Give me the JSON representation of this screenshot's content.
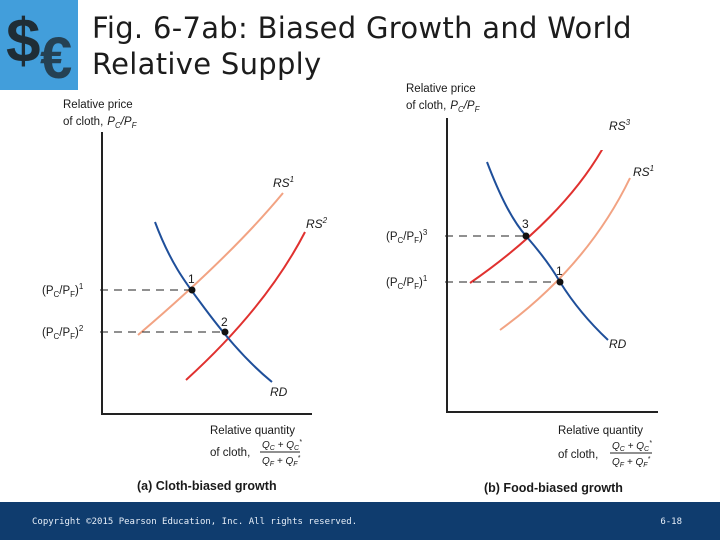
{
  "slide": {
    "title": "Fig. 6-7ab: Biased Growth and World Relative Supply",
    "copyright": "Copyright ©2015 Pearson Education, Inc. All rights reserved.",
    "page": "6-18"
  },
  "colors": {
    "rd": "#1f4f9a",
    "rs_light": "#f2a383",
    "rs_dark": "#e0312f",
    "footer": "#0f3c6e"
  },
  "panel_a": {
    "y_axis_label_1": "Relative price",
    "y_axis_label_2": "of cloth,",
    "y_axis_label_3": "P",
    "y_axis_sub_c": "C",
    "y_axis_slash": "/P",
    "y_axis_sub_f": "F",
    "x_axis_label_1": "Relative quantity",
    "x_axis_label_2": "of cloth,",
    "x_frac_num": "Q",
    "x_frac_num_c": "C",
    "x_frac_num_plus": " + Q",
    "x_frac_num_c2": "C",
    "x_frac_num_star": "*",
    "x_frac_den": "Q",
    "x_frac_den_f": "F",
    "x_frac_den_plus": " + Q",
    "x_frac_den_f2": "F",
    "x_frac_den_star": "*",
    "curve_rs1": "RS",
    "curve_rs1_sup": "1",
    "curve_rs2": "RS",
    "curve_rs2_sup": "2",
    "curve_rd": "RD",
    "price1_open": "(P",
    "price1_c": "C",
    "price1_mid": "/P",
    "price1_f": "F",
    "price1_close": ")",
    "price1_sup": "1",
    "price2_open": "(P",
    "price2_c": "C",
    "price2_mid": "/P",
    "price2_f": "F",
    "price2_close": ")",
    "price2_sup": "2",
    "point1": "1",
    "point2": "2",
    "caption": "(a) Cloth-biased growth"
  },
  "panel_b": {
    "y_axis_label_1": "Relative price",
    "y_axis_label_2": "of cloth,",
    "y_axis_label_3": "P",
    "y_axis_sub_c": "C",
    "y_axis_slash": "/P",
    "y_axis_sub_f": "F",
    "x_axis_label_1": "Relative quantity",
    "x_axis_label_2": "of cloth,",
    "x_frac_num": "Q",
    "x_frac_num_c": "C",
    "x_frac_num_plus": " + Q",
    "x_frac_num_c2": "C",
    "x_frac_num_star": "*",
    "x_frac_den": "Q",
    "x_frac_den_f": "F",
    "x_frac_den_plus": " + Q",
    "x_frac_den_f2": "F",
    "x_frac_den_star": "*",
    "curve_rs3": "RS",
    "curve_rs3_sup": "3",
    "curve_rs1": "RS",
    "curve_rs1_sup": "1",
    "curve_rd": "RD",
    "price3_open": "(P",
    "price3_c": "C",
    "price3_mid": "/P",
    "price3_f": "F",
    "price3_close": ")",
    "price3_sup": "3",
    "price1_open": "(P",
    "price1_c": "C",
    "price1_mid": "/P",
    "price1_f": "F",
    "price1_close": ")",
    "price1_sup": "1",
    "point3": "3",
    "point1": "1",
    "caption": "(b) Food-biased growth"
  }
}
